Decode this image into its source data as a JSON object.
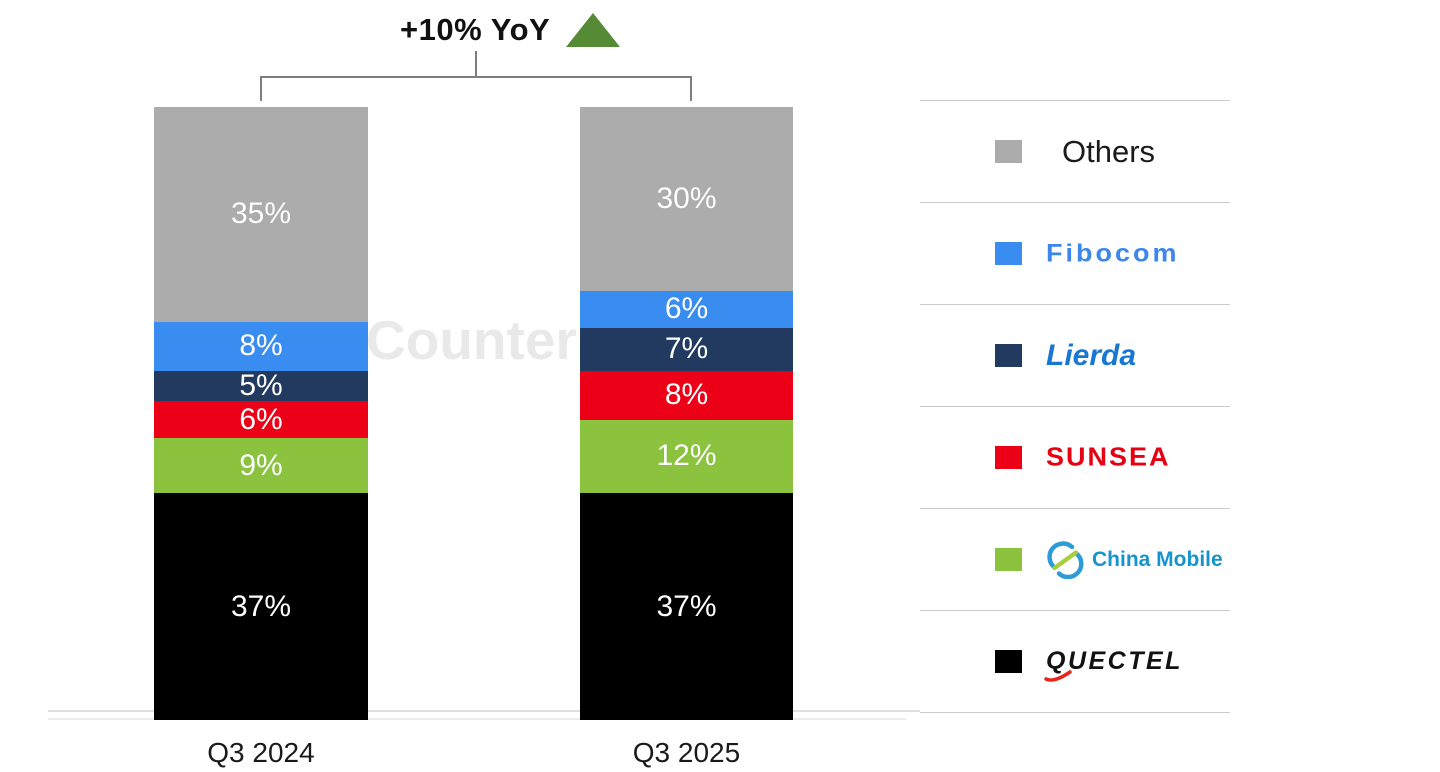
{
  "header": {
    "yoy_label": "+10% YoY",
    "arrow_color": "#568B36"
  },
  "watermark": "Counterp",
  "chart_data": {
    "type": "bar",
    "subtype": "100%-stacked-column",
    "title": "+10% YoY",
    "categories": [
      "Q3 2024",
      "Q3 2025"
    ],
    "series": [
      {
        "name": "Others",
        "color": "#ACACAC",
        "values": [
          35,
          30
        ]
      },
      {
        "name": "Fibocom",
        "color": "#3A8DF0",
        "values": [
          8,
          6
        ]
      },
      {
        "name": "Lierda",
        "color": "#233A60",
        "values": [
          5,
          7
        ]
      },
      {
        "name": "SUNSEA",
        "color": "#EB0017",
        "values": [
          6,
          8
        ]
      },
      {
        "name": "China Mobile",
        "color": "#8BC33E",
        "values": [
          9,
          12
        ]
      },
      {
        "name": "Quectel",
        "color": "#000000",
        "values": [
          37,
          37
        ]
      }
    ],
    "value_suffix": "%",
    "ylim": [
      0,
      100
    ],
    "grid": false,
    "legend_position": "right"
  },
  "legend": {
    "items": [
      {
        "label": "Others",
        "color": "#ACACAC",
        "logo_color": "#1A1A1A"
      },
      {
        "label": "Fibocom",
        "color": "#3A8DF0",
        "logo_color": "#3C86EC"
      },
      {
        "label": "Lierda",
        "color": "#233A60",
        "logo_color": "#1877D2"
      },
      {
        "label": "SUNSEA",
        "color": "#EB0017",
        "logo_color": "#E60012"
      },
      {
        "label": "China Mobile",
        "color": "#8BC33E",
        "logo_color": "#1793CE"
      },
      {
        "label": "QUECTEL",
        "color": "#000000",
        "logo_color": "#121212"
      }
    ]
  }
}
